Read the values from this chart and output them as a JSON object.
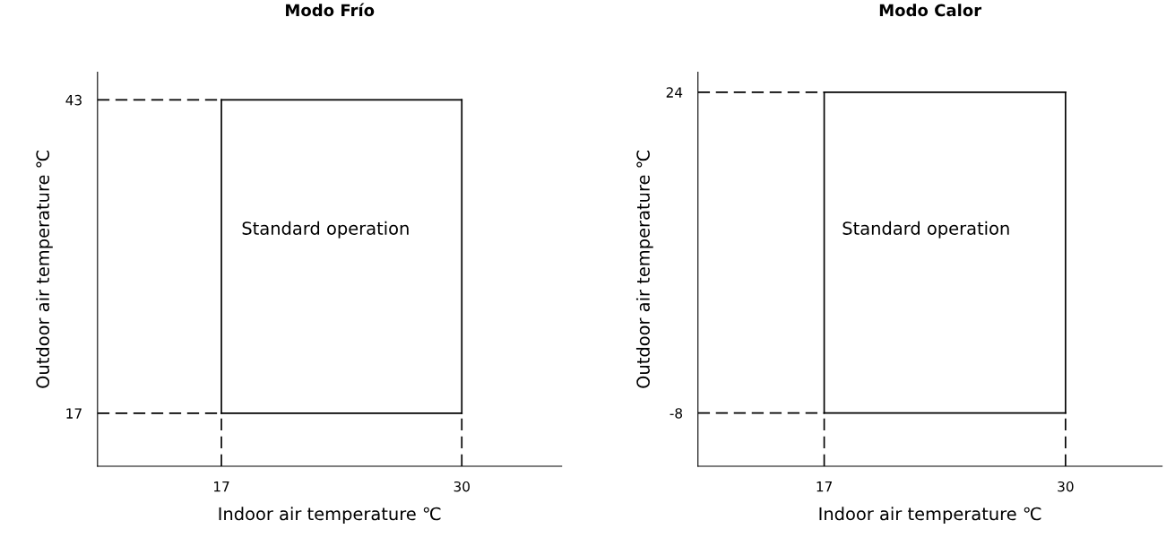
{
  "chart_data": [
    {
      "type": "line",
      "title": "Modo Frío",
      "xlabel": "Indoor air temperature ℃",
      "ylabel": "Outdoor air temperature ℃",
      "xlim": [
        10.3,
        35.4
      ],
      "ylim": [
        12.6,
        45.3
      ],
      "xticks": [
        17,
        30
      ],
      "yticks": [
        17,
        43
      ],
      "grid": false,
      "marker": "none",
      "series": [
        {
          "color": "#000000",
          "line_style": "solid",
          "x": [
            17,
            30
          ],
          "values": [
            43,
            43
          ]
        },
        {
          "color": "#000000",
          "line_style": "solid",
          "x": [
            17,
            30
          ],
          "values": [
            17,
            17
          ]
        },
        {
          "color": "#000000",
          "line_style": "solid",
          "x": [
            17,
            17
          ],
          "values": [
            17,
            43
          ]
        },
        {
          "color": "#000000",
          "line_style": "solid",
          "x": [
            30,
            30
          ],
          "values": [
            17,
            43
          ]
        },
        {
          "color": "#000000",
          "line_style": "dashed",
          "x": [
            10.3,
            17
          ],
          "values": [
            43,
            43
          ]
        },
        {
          "color": "#000000",
          "line_style": "dashed",
          "x": [
            10.3,
            17
          ],
          "values": [
            17,
            17
          ]
        },
        {
          "color": "#000000",
          "line_style": "dashed",
          "x": [
            17,
            17
          ],
          "values": [
            12.6,
            17
          ]
        },
        {
          "color": "#000000",
          "line_style": "dashed",
          "x": [
            30,
            30
          ],
          "values": [
            12.6,
            17
          ]
        }
      ],
      "annotations": [
        "Standard operation"
      ]
    },
    {
      "type": "line",
      "title": "Modo Calor",
      "xlabel": "Indoor air temperature ℃",
      "ylabel": "Outdoor air temperature ℃",
      "xlim": [
        10.2,
        35.2
      ],
      "ylim": [
        -13.3,
        26
      ],
      "xticks": [
        17,
        30
      ],
      "yticks": [
        -8,
        24
      ],
      "grid": false,
      "marker": "none",
      "series": [
        {
          "color": "#000000",
          "line_style": "solid",
          "x": [
            17,
            30
          ],
          "values": [
            24,
            24
          ]
        },
        {
          "color": "#000000",
          "line_style": "solid",
          "x": [
            17,
            30
          ],
          "values": [
            -8,
            -8
          ]
        },
        {
          "color": "#000000",
          "line_style": "solid",
          "x": [
            17,
            17
          ],
          "values": [
            -8,
            24
          ]
        },
        {
          "color": "#000000",
          "line_style": "solid",
          "x": [
            30,
            30
          ],
          "values": [
            -8,
            24
          ]
        },
        {
          "color": "#000000",
          "line_style": "dashed",
          "x": [
            10.2,
            17
          ],
          "values": [
            24,
            24
          ]
        },
        {
          "color": "#000000",
          "line_style": "dashed",
          "x": [
            10.2,
            17
          ],
          "values": [
            -8,
            -8
          ]
        },
        {
          "color": "#000000",
          "line_style": "dashed",
          "x": [
            17,
            17
          ],
          "values": [
            -13.3,
            -8
          ]
        },
        {
          "color": "#000000",
          "line_style": "dashed",
          "x": [
            30,
            30
          ],
          "values": [
            -13.3,
            -8
          ]
        }
      ],
      "annotations": [
        "Standard operation"
      ]
    }
  ]
}
